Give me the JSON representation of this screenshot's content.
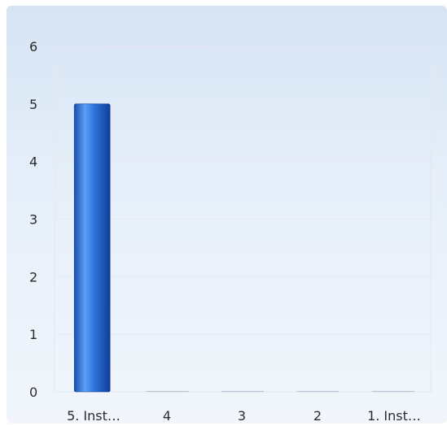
{
  "chart_data": {
    "type": "bar",
    "categories": [
      "5. Inst...",
      "4",
      "3",
      "2",
      "1. Inst..."
    ],
    "values": [
      5,
      0,
      0,
      0,
      0
    ],
    "ylim": [
      0,
      6
    ],
    "yticks": [
      "0",
      "1",
      "2",
      "3",
      "4",
      "5",
      "6"
    ],
    "grid": true,
    "bar_color": "#2f6fd6",
    "background_color": "#e4edf8"
  }
}
